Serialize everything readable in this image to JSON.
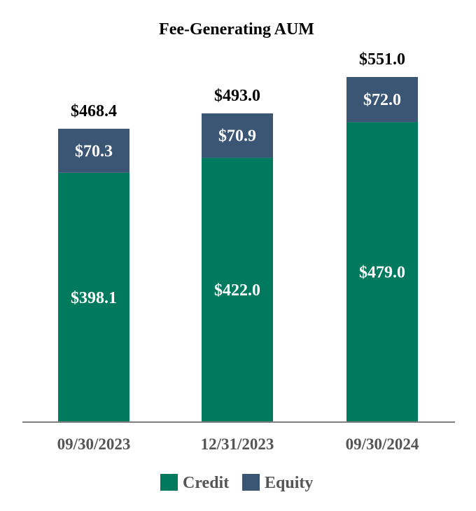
{
  "chart_data": {
    "type": "bar",
    "stacked": true,
    "title": "Fee-Generating AUM",
    "categories": [
      "09/30/2023",
      "12/31/2023",
      "09/30/2024"
    ],
    "series": [
      {
        "name": "Credit",
        "values": [
          398.1,
          422.0,
          479.0
        ],
        "labels": [
          "$398.1",
          "$422.0",
          "$479.0"
        ],
        "color": "#007a5e"
      },
      {
        "name": "Equity",
        "values": [
          70.3,
          70.9,
          72.0
        ],
        "labels": [
          "$70.3",
          "$70.9",
          "$72.0"
        ],
        "color": "#3a5674"
      }
    ],
    "totals": [
      468.4,
      493.0,
      551.0
    ],
    "total_labels": [
      "$468.4",
      "$493.0",
      "$551.0"
    ],
    "xlabel": "",
    "ylabel": "",
    "ylim": [
      0,
      551
    ],
    "grid": false,
    "legend_position": "bottom-center"
  },
  "colors": {
    "axis": "#808080",
    "tick_text": "#555555",
    "legend_text": "#555555"
  }
}
